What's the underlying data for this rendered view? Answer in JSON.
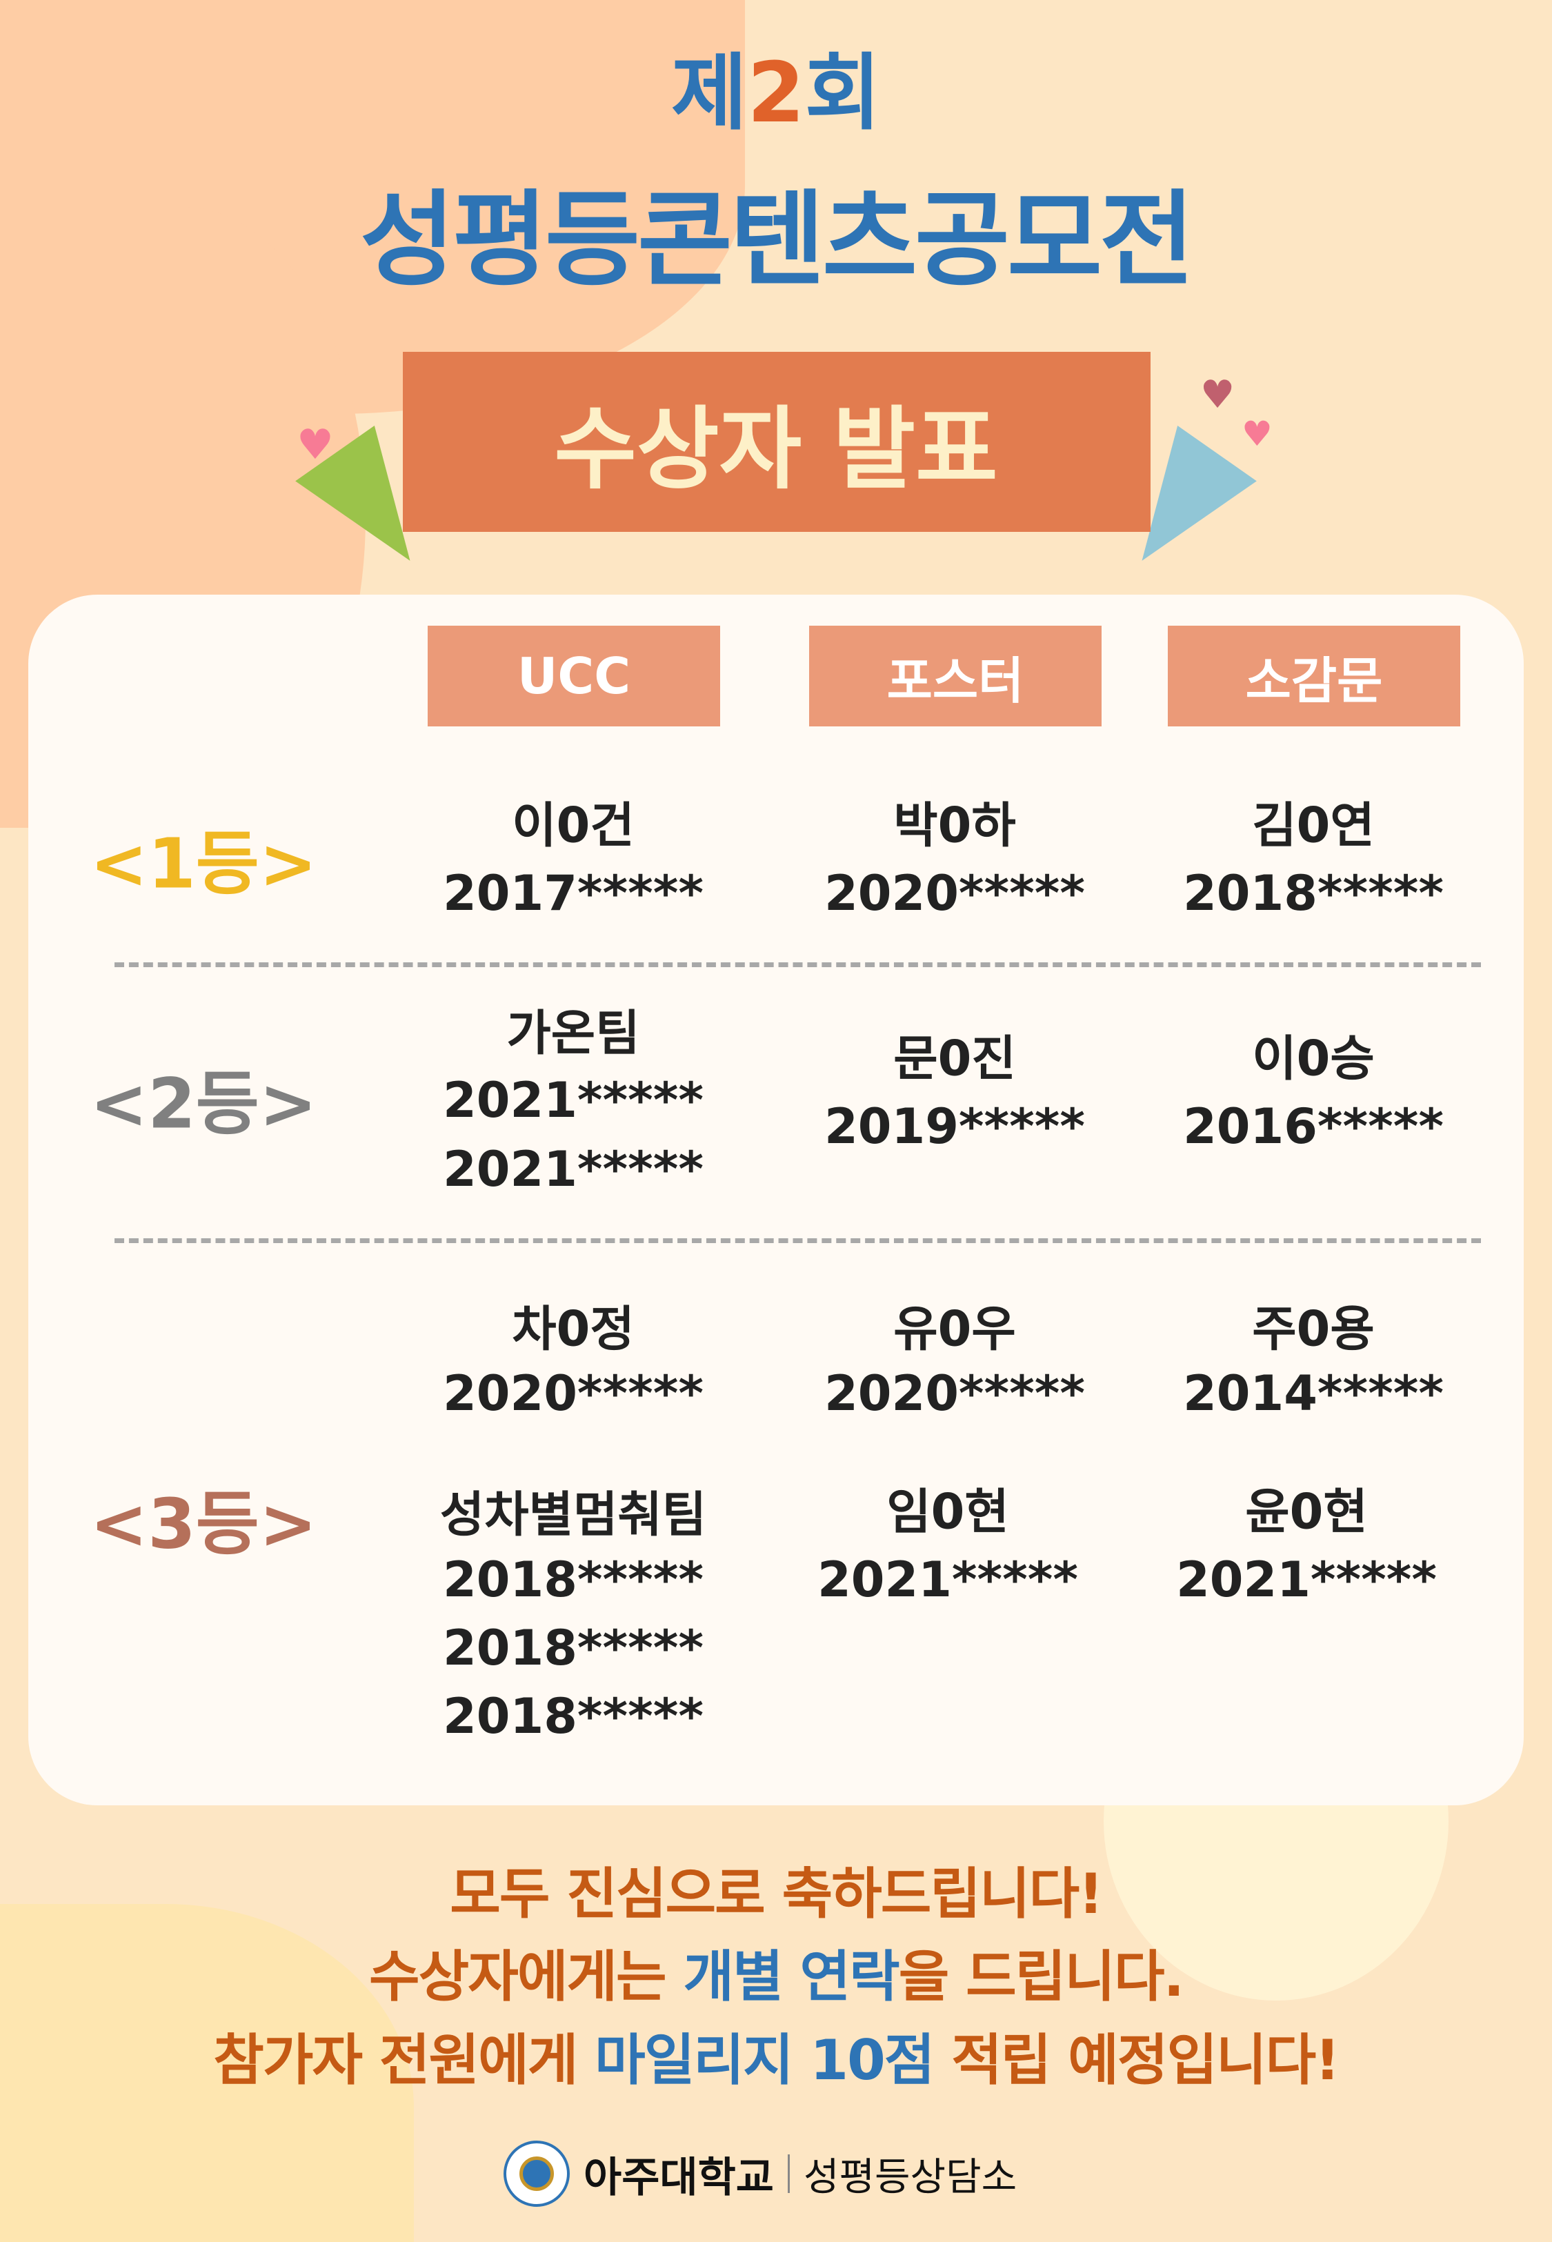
{
  "title": {
    "prefix": "제",
    "number": "2",
    "suffix": "회",
    "main": "성평등콘텐츠공모전",
    "banner": "수상자 발표"
  },
  "colors": {
    "background": "#fde6c4",
    "title_blue": "#2e74b5",
    "banner": "#e27c4f",
    "header": "#eb9a78",
    "gold": "#f0b823",
    "silver": "#808080",
    "bronze": "#b5705a",
    "message_orange": "#c55a14"
  },
  "columns": [
    "UCC",
    "포스터",
    "소감문"
  ],
  "ranks": [
    {
      "label": "<1등>",
      "color": "#f0b823",
      "ucc": [
        "이0건",
        "2017*****"
      ],
      "poster": [
        "박0하",
        "2020*****"
      ],
      "essay": [
        "김0연",
        "2018*****"
      ]
    },
    {
      "label": "<2등>",
      "color": "#808080",
      "ucc": [
        "가온팀",
        "2021*****",
        "2021*****"
      ],
      "poster": [
        "문0진",
        "2019*****"
      ],
      "essay": [
        "이0승",
        "2016*****"
      ]
    },
    {
      "label": "<3등>",
      "color": "#b5705a",
      "ucc": [
        "차0정",
        "2020*****"
      ],
      "poster": [
        "유0우",
        "2020*****"
      ],
      "essay": [
        "주0용",
        "2014*****"
      ],
      "ucc2": [
        "성차별멈춰팀",
        "2018*****",
        "2018*****",
        "2018*****"
      ],
      "poster2": [
        "임0현",
        "2021*****"
      ],
      "essay2": [
        "윤0현",
        "2021*****"
      ]
    }
  ],
  "messages": {
    "line1": "모두 진심으로 축하드립니다!",
    "line2_a": "수상자에게는 ",
    "line2_b": "개별 연락",
    "line2_c": "을 드립니다.",
    "line3_a": "참가자 전원에게 ",
    "line3_b": "마일리지 10점",
    "line3_c": " 적립 예정입니다!"
  },
  "footer": {
    "university": "아주대학교",
    "center": "성평등상담소",
    "seal_text": "AJOU UNIVERSITY 1973"
  }
}
